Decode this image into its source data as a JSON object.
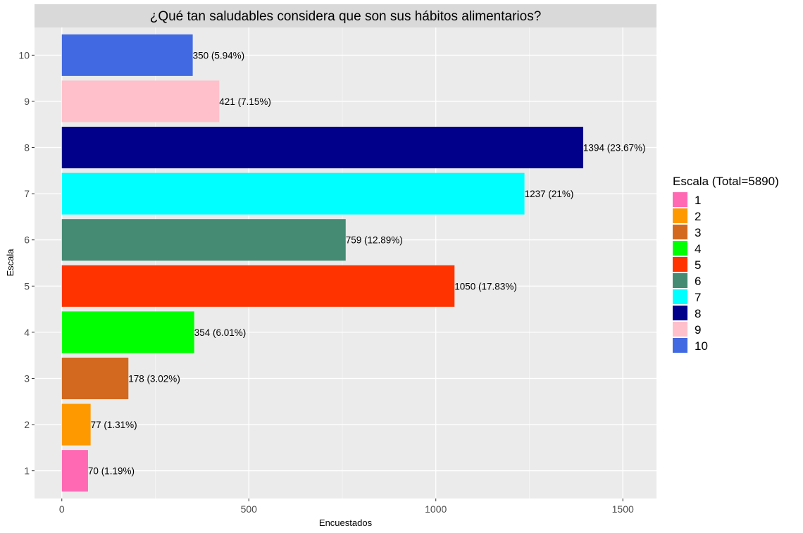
{
  "chart_data": {
    "type": "bar",
    "orientation": "horizontal",
    "title": "¿Qué tan saludables considera que son sus hábitos alimentarios?",
    "xlabel": "Encuestados",
    "ylabel": "Escala",
    "xlim": [
      -73,
      1590
    ],
    "x_ticks": [
      0,
      500,
      1000,
      1500
    ],
    "grid": true,
    "legend_title": "Escala (Total=5890)",
    "legend_position": "right",
    "categories": [
      "1",
      "2",
      "3",
      "4",
      "5",
      "6",
      "7",
      "8",
      "9",
      "10"
    ],
    "values": [
      70,
      77,
      178,
      354,
      1050,
      759,
      1237,
      1394,
      421,
      350
    ],
    "labels": [
      "70 (1.19%)",
      "77 (1.31%)",
      "178 (3.02%)",
      "354 (6.01%)",
      "1050 (17.83%)",
      "759 (12.89%)",
      "1237 (21%)",
      "1394 (23.67%)",
      "421 (7.15%)",
      "350 (5.94%)"
    ],
    "colors": [
      "#ff69b4",
      "#ff9900",
      "#d2691e",
      "#00ff00",
      "#ff3300",
      "#458b74",
      "#00ffff",
      "#00008b",
      "#ffc0cb",
      "#4169e1"
    ]
  }
}
